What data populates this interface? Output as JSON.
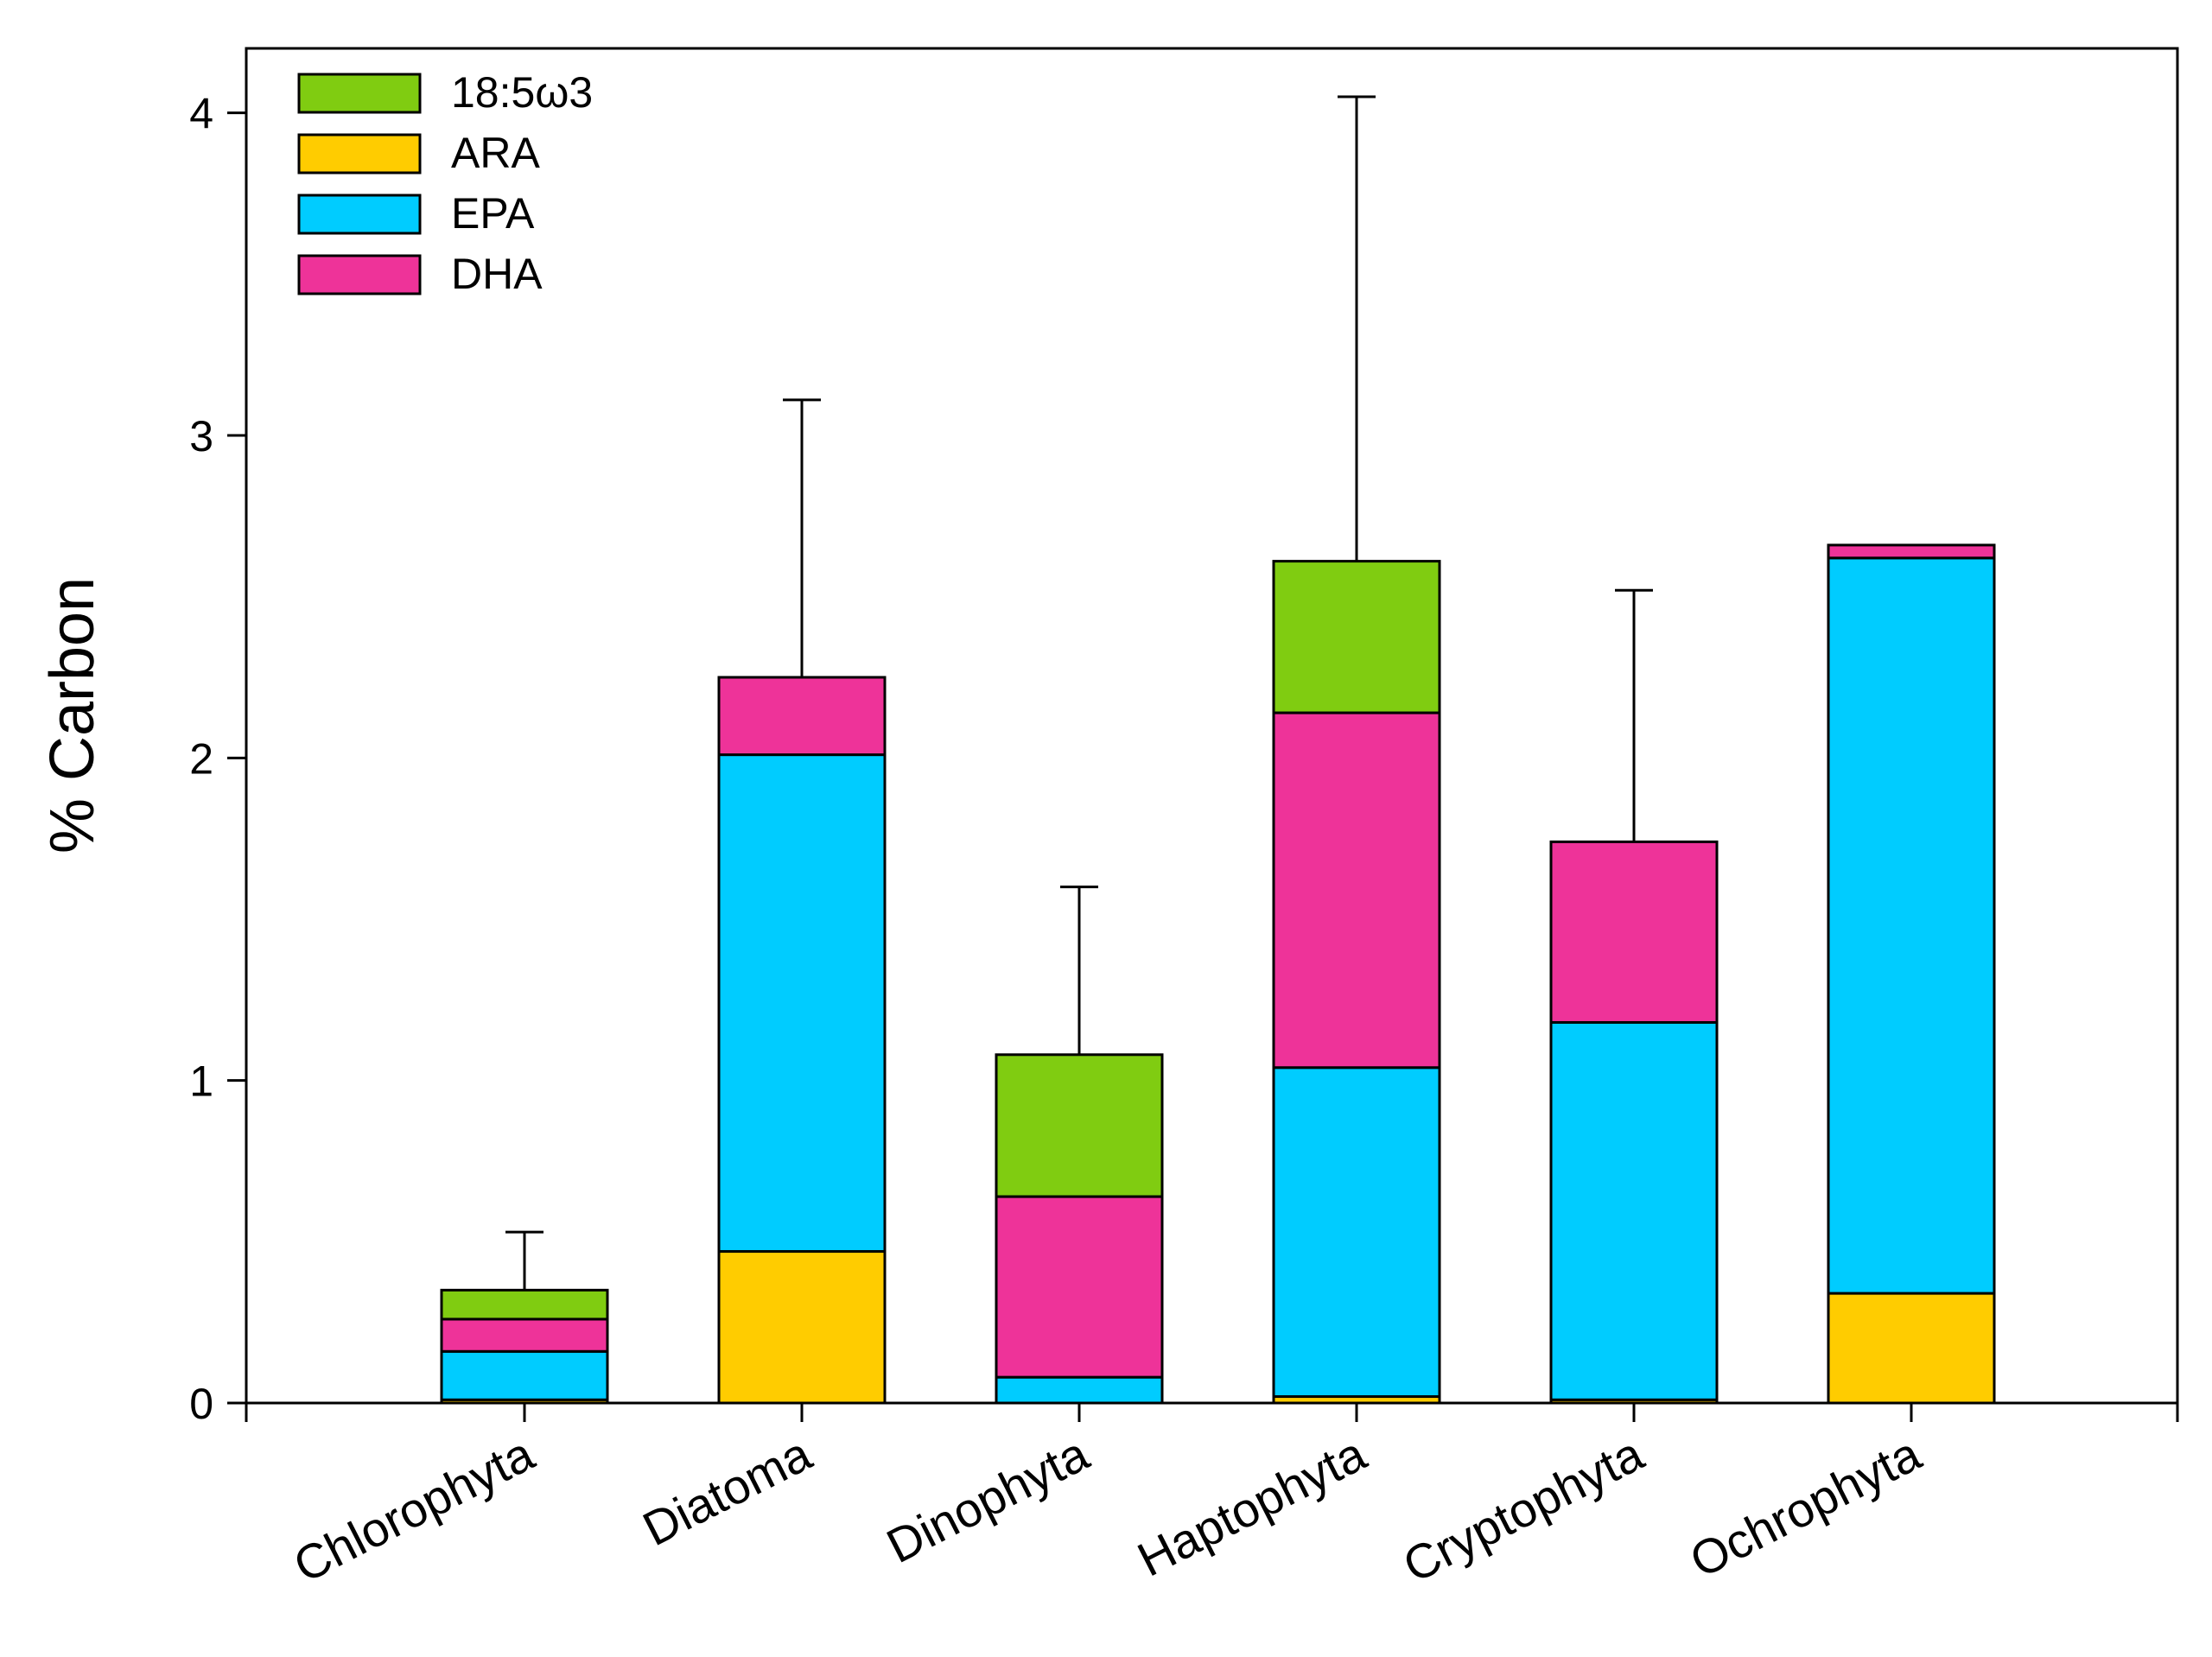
{
  "chart_data": {
    "type": "bar",
    "stacked": true,
    "title": "",
    "xlabel": "",
    "ylabel": "% Carbon",
    "ylim": [
      0,
      4.2
    ],
    "yticks": [
      0,
      1,
      2,
      3,
      4
    ],
    "categories": [
      "Chlorophyta",
      "Diatoma",
      "Dinophyta",
      "Haptophyta",
      "Cryptophyta",
      "Ochrophyta"
    ],
    "series": [
      {
        "name": "ARA",
        "color": "#FFCC00",
        "values": [
          0.01,
          0.47,
          0.0,
          0.02,
          0.01,
          0.34
        ]
      },
      {
        "name": "EPA",
        "color": "#00CCFF",
        "values": [
          0.15,
          1.54,
          0.08,
          1.02,
          1.17,
          2.28
        ]
      },
      {
        "name": "DHA",
        "color": "#EE3399",
        "values": [
          0.1,
          0.24,
          0.56,
          1.1,
          0.56,
          0.04
        ]
      },
      {
        "name": "18:5ω3",
        "color": "#80CC11",
        "values": [
          0.09,
          0.0,
          0.44,
          0.47,
          0.0,
          0.0
        ]
      }
    ],
    "error_upper": [
      0.53,
      3.11,
      1.6,
      4.05,
      2.52,
      null
    ],
    "legend": {
      "position": "top-left",
      "order": [
        "18:5ω3",
        "ARA",
        "EPA",
        "DHA"
      ]
    },
    "grid": false
  }
}
